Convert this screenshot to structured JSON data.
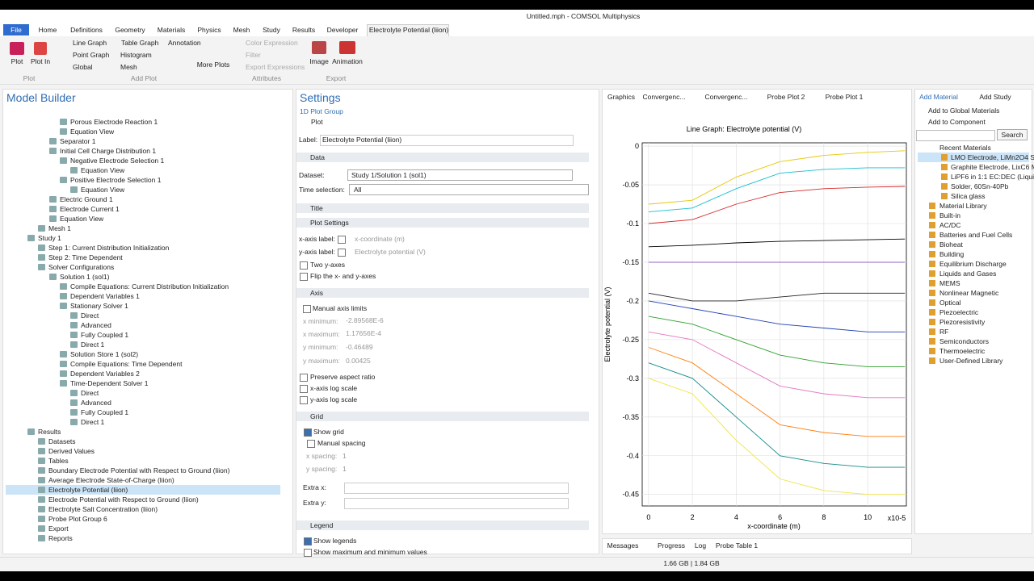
{
  "title_bar": {
    "title": "Untitled.mph - COMSOL Multiphysics"
  },
  "menu": {
    "file": "File",
    "tabs": [
      "Home",
      "Definitions",
      "Geometry",
      "Materials",
      "Physics",
      "Mesh",
      "Study",
      "Results",
      "Developer",
      "Electrolyte Potential (liion)"
    ]
  },
  "ribbon": {
    "groups": [
      {
        "name": "Plot",
        "items": [
          "Plot",
          "Plot In"
        ]
      },
      {
        "name": "Add Plot",
        "items": [
          "Line Graph",
          "Table Graph",
          "Annotation",
          "Point Graph",
          "Histogram",
          "Global",
          "Mesh",
          "More Plots"
        ]
      },
      {
        "name": "Attributes",
        "items": [
          "Color Expression",
          "Filter",
          "Export Expressions"
        ]
      },
      {
        "name": "Export",
        "items": [
          "Image",
          "Animation"
        ]
      }
    ]
  },
  "model_builder": {
    "title": "Model Builder",
    "tree": [
      "Porous Electrode Reaction 1",
      "Equation View",
      "Separator 1",
      "Initial Cell Charge Distribution 1",
      "Negative Electrode Selection 1",
      "Equation View",
      "Positive Electrode Selection 1",
      "Equation View",
      "Electric Ground 1",
      "Electrode Current 1",
      "Equation View",
      "Mesh 1",
      "Study 1",
      "Step 1: Current Distribution Initialization",
      "Step 2: Time Dependent",
      "Solver Configurations",
      "Solution 1 (sol1)",
      "Compile Equations: Current Distribution Initialization",
      "Dependent Variables 1",
      "Stationary Solver 1",
      "Direct",
      "Advanced",
      "Fully Coupled 1",
      "Direct 1",
      "Solution Store 1 (sol2)",
      "Compile Equations: Time Dependent",
      "Dependent Variables 2",
      "Time-Dependent Solver 1",
      "Direct",
      "Advanced",
      "Fully Coupled 1",
      "Direct 1",
      "Results",
      "Datasets",
      "Derived Values",
      "Tables",
      "Boundary Electrode Potential with Respect to Ground (liion)",
      "Average Electrode State-of-Charge (liion)",
      "Electrolyte Potential (liion)",
      "Electrode Potential with Respect to Ground (liion)",
      "Electrolyte Salt Concentration (liion)",
      "Probe Plot Group 6",
      "Export",
      "Reports"
    ]
  },
  "settings": {
    "title": "Settings",
    "subtitle": "1D Plot Group",
    "plot_button": "Plot",
    "label_caption": "Label:",
    "label_value": "Electrolyte Potential (liion)",
    "data": {
      "header": "Data",
      "dataset_caption": "Dataset:",
      "dataset": "Study 1/Solution 1 (sol1)",
      "time_caption": "Time selection:",
      "time": "All"
    },
    "title_section": {
      "header": "Title"
    },
    "plot_settings": {
      "header": "Plot Settings",
      "x_caption": "x-axis label:",
      "x_label": "x-coordinate (m)",
      "y_caption": "y-axis label:",
      "y_label": "Electrolyte potential (V)",
      "two_axes": "Two y-axes",
      "flip": "Flip the x- and y-axes"
    },
    "axis": {
      "header": "Axis",
      "manual": "Manual axis limits",
      "xmin_caption": "x minimum:",
      "xmin": "-2.89568E-6",
      "xmax_caption": "x maximum:",
      "xmax": "1.17656E-4",
      "ymin_caption": "y minimum:",
      "ymin": "-0.46489",
      "ymax_caption": "y maximum:",
      "ymax": "0.00425",
      "aspect": "Preserve aspect ratio",
      "xlog": "x-axis log scale",
      "ylog": "y-axis log scale"
    },
    "grid": {
      "header": "Grid",
      "show": "Show grid",
      "manual": "Manual spacing",
      "xs_caption": "x spacing:",
      "xs": "1",
      "ys_caption": "y spacing:",
      "ys": "1",
      "extra_x": "Extra x:",
      "extra_y": "Extra y:"
    },
    "legend": {
      "header": "Legend",
      "show": "Show legends",
      "minmax": "Show maximum and minimum values"
    }
  },
  "graphics_tabs": [
    "Graphics",
    "Convergenc...",
    "Convergenc...",
    "Probe Plot 2",
    "Probe Plot 1"
  ],
  "chart_data": {
    "type": "line",
    "title": "Line Graph: Electrolyte potential (V)",
    "x_label": "x-coordinate (m)",
    "y_label": "Electrolyte potential (V)",
    "x_multiplier": "x10-5",
    "x": [
      0,
      2,
      4,
      6,
      8,
      10,
      11.7
    ],
    "xlim": [
      -0.289568,
      11.7656
    ],
    "xticks": [
      0,
      2,
      4,
      6,
      8,
      10
    ],
    "ylim": [
      -0.46489,
      0.00425
    ],
    "yticks": [
      0,
      -0.05,
      -0.1,
      -0.15,
      -0.2,
      -0.25,
      -0.3,
      -0.35,
      -0.4,
      -0.45
    ],
    "grid": true,
    "series": [
      {
        "color": "#e6c700",
        "values": [
          -0.075,
          -0.07,
          -0.04,
          -0.02,
          -0.012,
          -0.008,
          -0.006
        ]
      },
      {
        "color": "#17becf",
        "values": [
          -0.085,
          -0.08,
          -0.055,
          -0.035,
          -0.03,
          -0.028,
          -0.028
        ]
      },
      {
        "color": "#d62728",
        "values": [
          -0.1,
          -0.095,
          -0.075,
          -0.06,
          -0.055,
          -0.053,
          -0.052
        ]
      },
      {
        "color": "#000000",
        "values": [
          -0.13,
          -0.128,
          -0.125,
          -0.123,
          -0.122,
          -0.121,
          -0.12
        ]
      },
      {
        "color": "#9467bd",
        "values": [
          -0.15,
          -0.15,
          -0.15,
          -0.15,
          -0.15,
          -0.15,
          -0.15
        ]
      },
      {
        "color": "#222222",
        "values": [
          -0.19,
          -0.2,
          -0.2,
          -0.195,
          -0.19,
          -0.19,
          -0.19
        ]
      },
      {
        "color": "#1f3fb4",
        "values": [
          -0.2,
          -0.21,
          -0.22,
          -0.23,
          -0.235,
          -0.24,
          -0.24
        ]
      },
      {
        "color": "#2ca02c",
        "values": [
          -0.22,
          -0.23,
          -0.25,
          -0.27,
          -0.28,
          -0.285,
          -0.285
        ]
      },
      {
        "color": "#e377c2",
        "values": [
          -0.24,
          -0.25,
          -0.28,
          -0.31,
          -0.32,
          -0.325,
          -0.325
        ]
      },
      {
        "color": "#ff7f0e",
        "values": [
          -0.26,
          -0.28,
          -0.32,
          -0.36,
          -0.37,
          -0.375,
          -0.375
        ]
      },
      {
        "color": "#138a8a",
        "values": [
          -0.28,
          -0.3,
          -0.35,
          -0.4,
          -0.41,
          -0.415,
          -0.415
        ]
      },
      {
        "color": "#f0e442",
        "values": [
          -0.3,
          -0.32,
          -0.38,
          -0.43,
          -0.445,
          -0.45,
          -0.45
        ]
      }
    ]
  },
  "add_material": {
    "tabs": [
      "Add Material",
      "Add Study"
    ],
    "global": "Add to Global Materials",
    "component": "Add to Component",
    "search": "Search",
    "recent": "Recent Materials",
    "recent_items": [
      "LMO Electrode, LiMn2O4 Sp",
      "Graphite Electrode, LixC6 M",
      "LiPF6 in 1:1 EC:DEC (Liquid",
      "Solder, 60Sn-40Pb",
      "Silica glass"
    ],
    "libraries": [
      "Material Library",
      "Built-in",
      "AC/DC",
      "Batteries and Fuel Cells",
      "Bioheat",
      "Building",
      "Equilibrium Discharge",
      "Liquids and Gases",
      "MEMS",
      "Nonlinear Magnetic",
      "Optical",
      "Piezoelectric",
      "Piezoresistivity",
      "RF",
      "Semiconductors",
      "Thermoelectric",
      "User-Defined Library"
    ]
  },
  "bottom_tabs": [
    "Messages",
    "Progress",
    "Log",
    "Probe Table 1"
  ],
  "status": "1.66 GB | 1.84 GB"
}
